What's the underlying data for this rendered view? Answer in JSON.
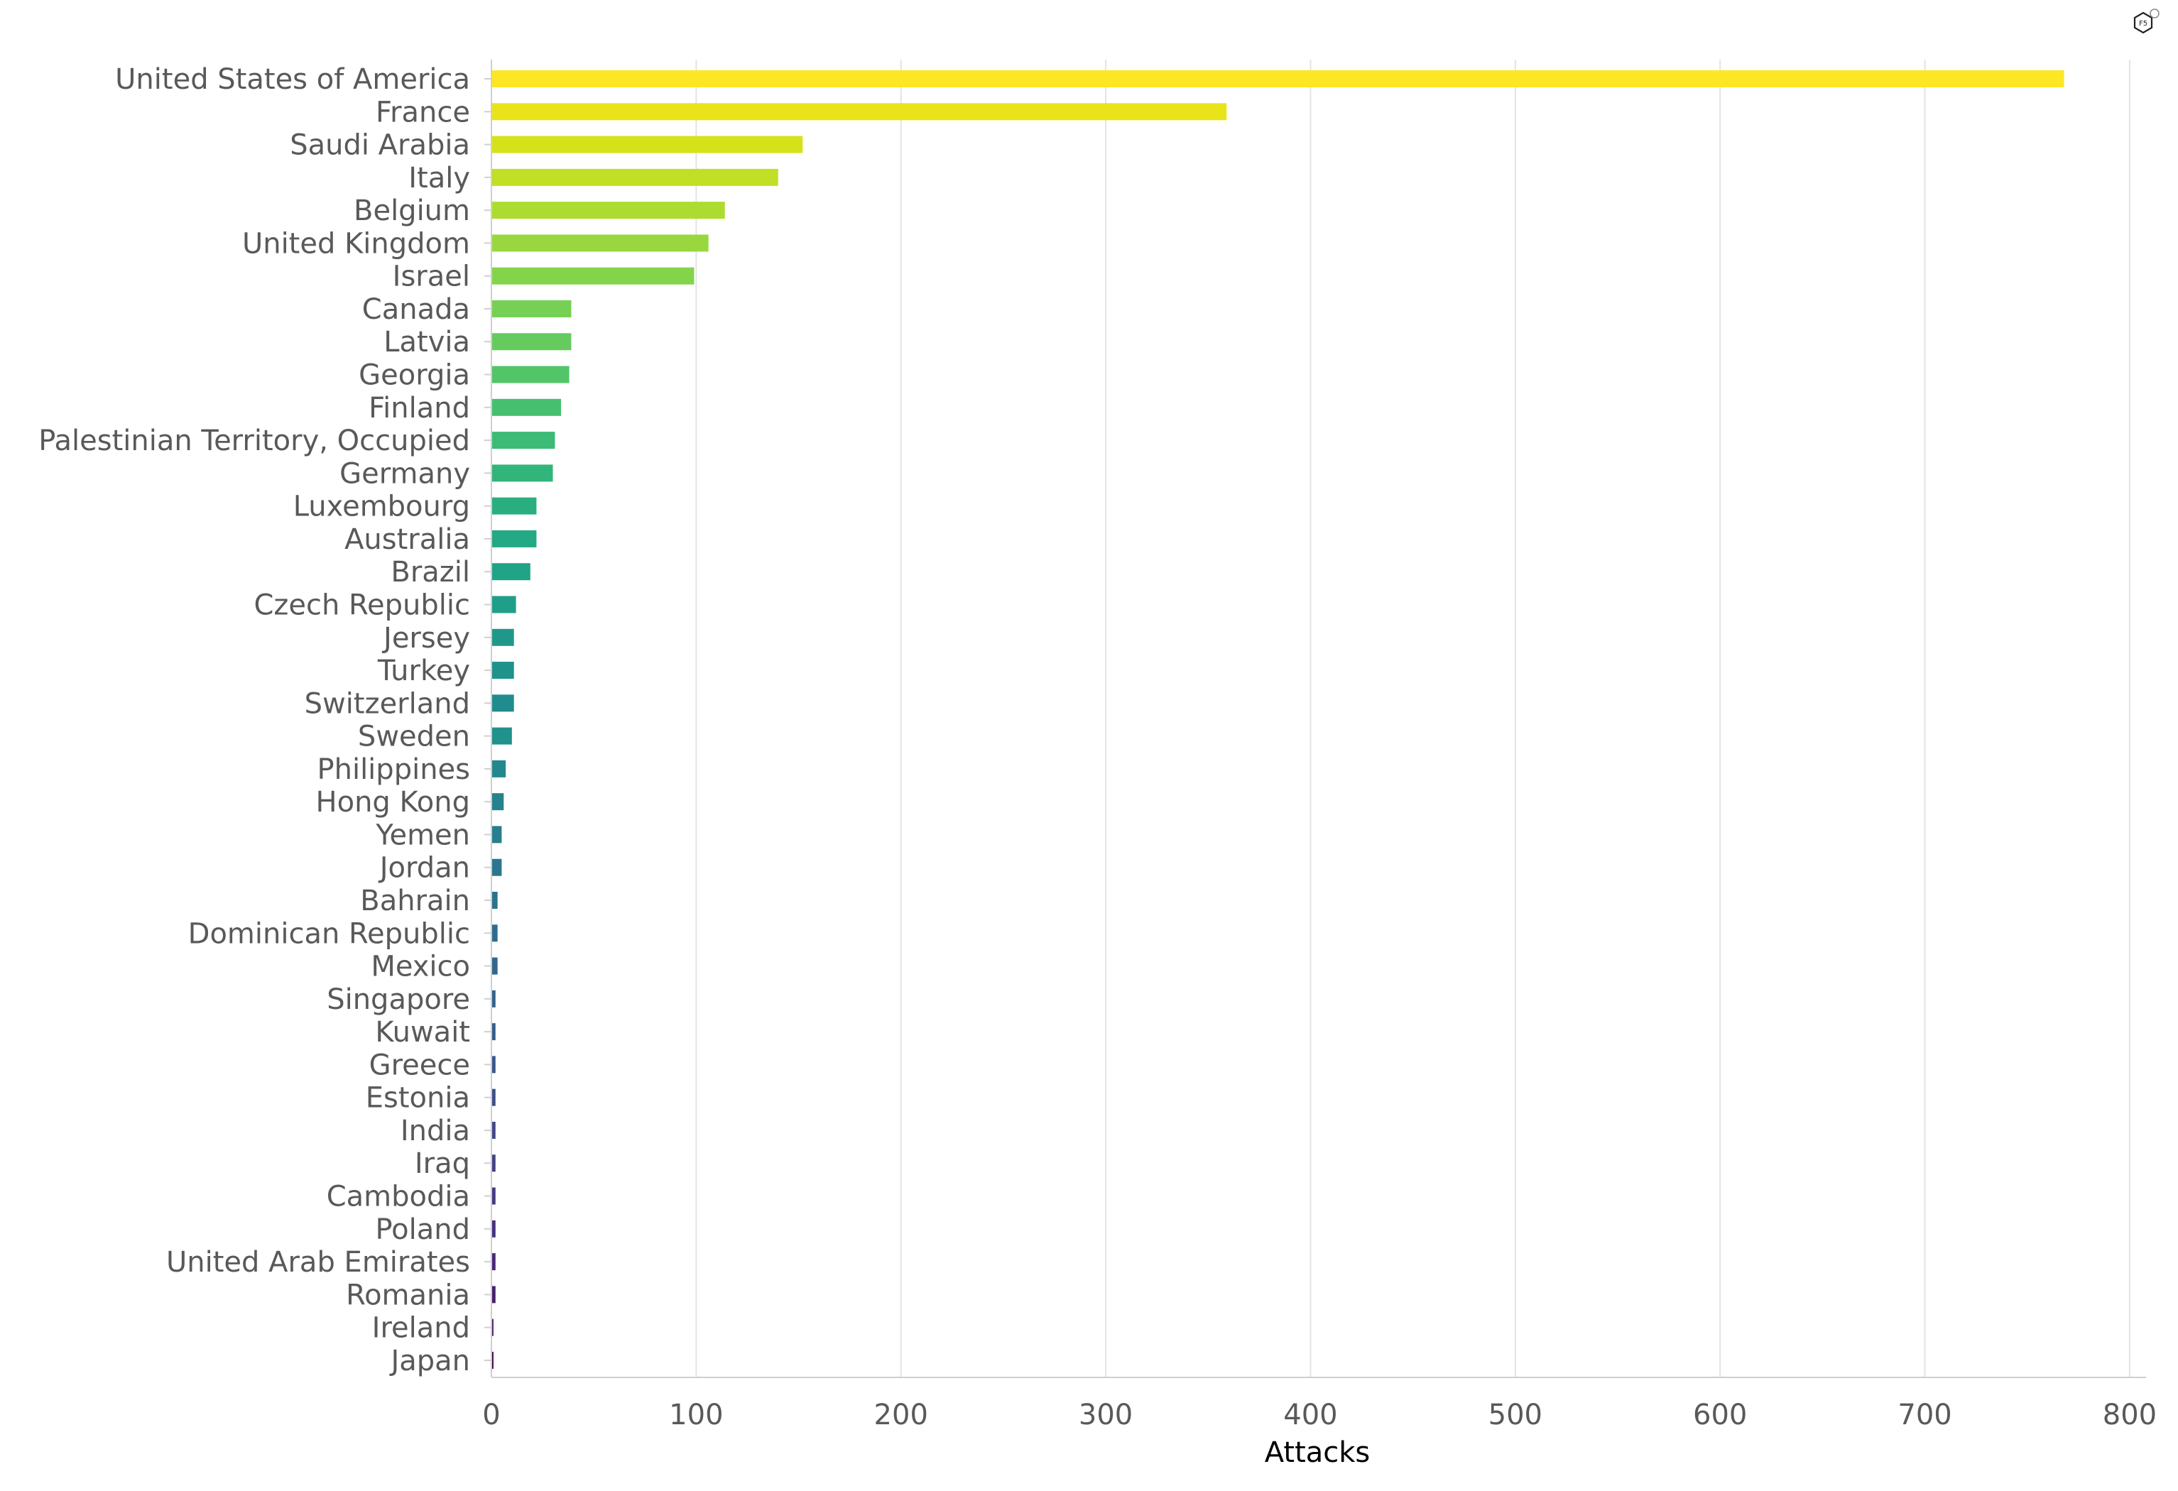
{
  "chart_data": {
    "type": "bar",
    "orientation": "horizontal",
    "title": "",
    "xlabel": "Attacks",
    "ylabel": "",
    "xlim": [
      0,
      808
    ],
    "xticks": [
      0,
      100,
      200,
      300,
      400,
      500,
      600,
      700,
      800
    ],
    "grid": "vertical",
    "legend": "none",
    "colormap": "viridis",
    "categories": [
      "United States of America",
      "France",
      "Saudi Arabia",
      "Italy",
      "Belgium",
      "United Kingdom",
      "Israel",
      "Canada",
      "Latvia",
      "Georgia",
      "Finland",
      "Palestinian Territory, Occupied",
      "Germany",
      "Luxembourg",
      "Australia",
      "Brazil",
      "Czech Republic",
      "Jersey",
      "Turkey",
      "Switzerland",
      "Sweden",
      "Philippines",
      "Hong Kong",
      "Yemen",
      "Jordan",
      "Bahrain",
      "Dominican Republic",
      "Mexico",
      "Singapore",
      "Kuwait",
      "Greece",
      "Estonia",
      "India",
      "Iraq",
      "Cambodia",
      "Poland",
      "United Arab Emirates",
      "Romania",
      "Ireland",
      "Japan"
    ],
    "values": [
      768,
      359,
      152,
      140,
      114,
      106,
      99,
      39,
      39,
      38,
      34,
      31,
      30,
      22,
      22,
      19,
      12,
      11,
      11,
      11,
      10,
      7,
      6,
      5,
      5,
      3,
      3,
      3,
      2,
      2,
      2,
      2,
      2,
      2,
      2,
      2,
      2,
      2,
      1,
      1
    ],
    "colors": [
      "#fde725",
      "#e8e419",
      "#d5e21a",
      "#c0df25",
      "#addc30",
      "#98d83e",
      "#84d44b",
      "#75d054",
      "#65cb5e",
      "#52c569",
      "#46c06f",
      "#3bbb75",
      "#31b57b",
      "#29af7f",
      "#23a983",
      "#20a386",
      "#1f9e89",
      "#1f988b",
      "#1f928c",
      "#208c8d",
      "#21918c",
      "#23888e",
      "#26828e",
      "#277e8e",
      "#2a768e",
      "#2c728e",
      "#2e6c8e",
      "#31668e",
      "#33628d",
      "#365c8d",
      "#39568c",
      "#3c4f8a",
      "#3f4889",
      "#424086",
      "#453882",
      "#46307e",
      "#472878",
      "#481f70",
      "#482071",
      "#440154"
    ]
  }
}
